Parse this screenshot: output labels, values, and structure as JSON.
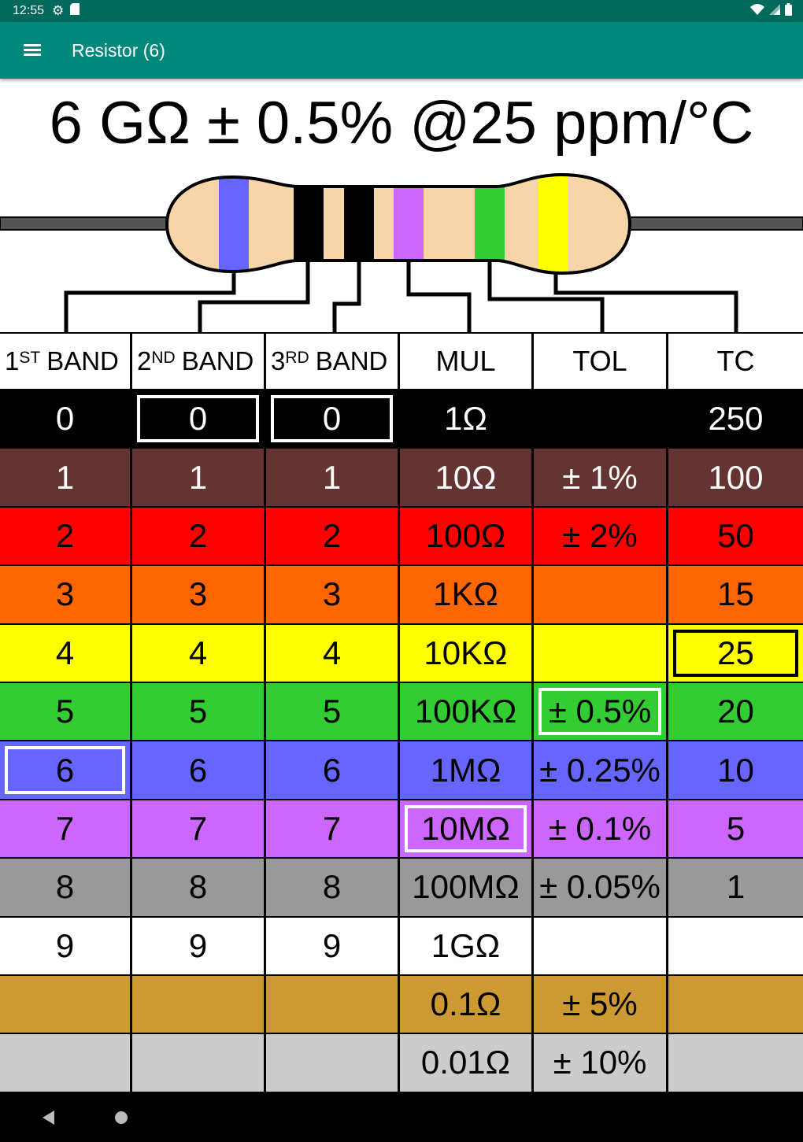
{
  "status_bar": {
    "time": "12:55",
    "icons": [
      "settings-icon",
      "sd-card-icon",
      "wifi-icon",
      "signal-icon",
      "battery-icon"
    ]
  },
  "app_bar": {
    "title": "Resistor (6)",
    "menu_icon": "hamburger-menu-icon",
    "background": "#00897b"
  },
  "value_display": "6 GΩ ± 0.5% @25 ppm/°C",
  "resistor": {
    "body_color": "#f7d5a8",
    "band_colors": [
      "#6666ff",
      "#000000",
      "#000000",
      "#cc66ff",
      "#33cc33",
      "#ffff00"
    ]
  },
  "table": {
    "headers": [
      {
        "num": "1",
        "sup": "ST",
        "label": "BAND"
      },
      {
        "num": "2",
        "sup": "ND",
        "label": "BAND"
      },
      {
        "num": "3",
        "sup": "RD",
        "label": "BAND"
      },
      {
        "label": "MUL"
      },
      {
        "label": "TOL"
      },
      {
        "label": "TC"
      }
    ],
    "rows": [
      {
        "color": "#000000",
        "white_text": true,
        "cells": [
          "0",
          "0",
          "0",
          "1Ω",
          "",
          "250"
        ]
      },
      {
        "color": "#663333",
        "white_text": true,
        "cells": [
          "1",
          "1",
          "1",
          "10Ω",
          "± 1%",
          "100"
        ]
      },
      {
        "color": "#ff0000",
        "white_text": false,
        "cells": [
          "2",
          "2",
          "2",
          "100Ω",
          "± 2%",
          "50"
        ]
      },
      {
        "color": "#ff6600",
        "white_text": false,
        "cells": [
          "3",
          "3",
          "3",
          "1KΩ",
          "",
          "15"
        ]
      },
      {
        "color": "#ffff00",
        "white_text": false,
        "cells": [
          "4",
          "4",
          "4",
          "10KΩ",
          "",
          "25"
        ]
      },
      {
        "color": "#33cc33",
        "white_text": false,
        "cells": [
          "5",
          "5",
          "5",
          "100KΩ",
          "± 0.5%",
          "20"
        ]
      },
      {
        "color": "#6666ff",
        "white_text": false,
        "cells": [
          "6",
          "6",
          "6",
          "1MΩ",
          "± 0.25%",
          "10"
        ]
      },
      {
        "color": "#cc66ff",
        "white_text": false,
        "cells": [
          "7",
          "7",
          "7",
          "10MΩ",
          "± 0.1%",
          "5"
        ]
      },
      {
        "color": "#999999",
        "white_text": false,
        "cells": [
          "8",
          "8",
          "8",
          "100MΩ",
          "± 0.05%",
          "1"
        ]
      },
      {
        "color": "#ffffff",
        "white_text": false,
        "cells": [
          "9",
          "9",
          "9",
          "1GΩ",
          "",
          ""
        ]
      },
      {
        "color": "#cc9933",
        "white_text": false,
        "cells": [
          "",
          "",
          "",
          "0.1Ω",
          "± 5%",
          ""
        ]
      },
      {
        "color": "#cccccc",
        "white_text": false,
        "cells": [
          "",
          "",
          "",
          "0.01Ω",
          "± 10%",
          ""
        ]
      }
    ],
    "selected": [
      {
        "col": 0,
        "row": 6,
        "box": "white"
      },
      {
        "col": 1,
        "row": 0,
        "box": "white"
      },
      {
        "col": 2,
        "row": 0,
        "box": "white"
      },
      {
        "col": 3,
        "row": 7,
        "box": "white"
      },
      {
        "col": 4,
        "row": 5,
        "box": "white"
      },
      {
        "col": 5,
        "row": 4,
        "box": "black"
      }
    ]
  },
  "nav_bar": {
    "icons": [
      "back-icon",
      "home-icon"
    ]
  }
}
